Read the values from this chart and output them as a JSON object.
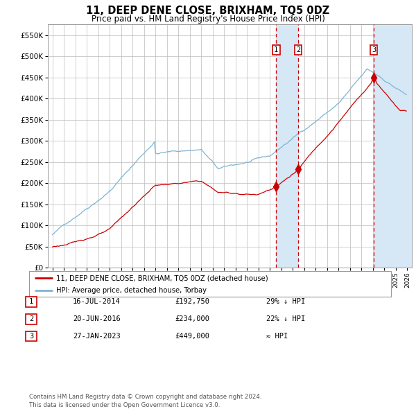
{
  "title": "11, DEEP DENE CLOSE, BRIXHAM, TQ5 0DZ",
  "subtitle": "Price paid vs. HM Land Registry's House Price Index (HPI)",
  "legend_line1": "11, DEEP DENE CLOSE, BRIXHAM, TQ5 0DZ (detached house)",
  "legend_line2": "HPI: Average price, detached house, Torbay",
  "sale1_date": "16-JUL-2014",
  "sale1_price": 192750,
  "sale1_hpi": "29% ↓ HPI",
  "sale2_date": "20-JUN-2016",
  "sale2_price": 234000,
  "sale2_hpi": "22% ↓ HPI",
  "sale3_date": "27-JAN-2023",
  "sale3_price": 449000,
  "sale3_hpi": "≈ HPI",
  "footer": "Contains HM Land Registry data © Crown copyright and database right 2024.\nThis data is licensed under the Open Government Licence v3.0.",
  "hpi_color": "#7fb3d3",
  "price_color": "#cc0000",
  "bg_color": "#ffffff",
  "grid_color": "#bbbbbb",
  "highlight_color": "#d6e8f5",
  "hatch_color": "#b0c8dd",
  "ylim": [
    0,
    575000
  ],
  "yticks": [
    0,
    50000,
    100000,
    150000,
    200000,
    250000,
    300000,
    350000,
    400000,
    450000,
    500000,
    550000
  ],
  "xlim_left": 1994.6,
  "xlim_right": 2026.4,
  "sale1_x": 2014.54,
  "sale2_x": 2016.47,
  "sale3_x": 2023.07
}
